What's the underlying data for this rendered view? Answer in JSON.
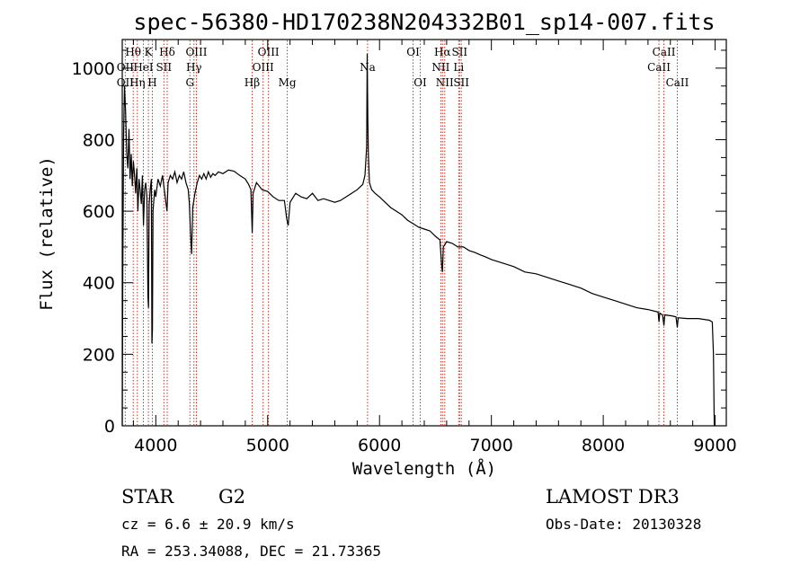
{
  "chart_data": {
    "type": "line",
    "title": "spec-56380-HD170238N204332B01_sp14-007.fits",
    "xlabel": "Wavelength (Å)",
    "ylabel": "Flux (relative)",
    "xlim": [
      3700,
      9100
    ],
    "ylim": [
      0,
      1080
    ],
    "x_ticks": [
      4000,
      5000,
      6000,
      7000,
      8000,
      9000
    ],
    "y_ticks": [
      0,
      200,
      400,
      600,
      800,
      1000
    ],
    "series": [
      {
        "name": "spectrum",
        "points": [
          [
            3700,
            0
          ],
          [
            3705,
            420
          ],
          [
            3712,
            810
          ],
          [
            3720,
            950
          ],
          [
            3730,
            880
          ],
          [
            3740,
            760
          ],
          [
            3750,
            720
          ],
          [
            3760,
            830
          ],
          [
            3770,
            690
          ],
          [
            3780,
            760
          ],
          [
            3790,
            670
          ],
          [
            3800,
            740
          ],
          [
            3810,
            700
          ],
          [
            3820,
            650
          ],
          [
            3830,
            720
          ],
          [
            3840,
            600
          ],
          [
            3850,
            690
          ],
          [
            3860,
            660
          ],
          [
            3870,
            620
          ],
          [
            3880,
            700
          ],
          [
            3890,
            560
          ],
          [
            3900,
            660
          ],
          [
            3910,
            680
          ],
          [
            3920,
            640
          ],
          [
            3930,
            360
          ],
          [
            3935,
            330
          ],
          [
            3940,
            620
          ],
          [
            3950,
            660
          ],
          [
            3960,
            690
          ],
          [
            3965,
            230
          ],
          [
            3970,
            270
          ],
          [
            3975,
            600
          ],
          [
            3990,
            660
          ],
          [
            4000,
            640
          ],
          [
            4020,
            690
          ],
          [
            4040,
            670
          ],
          [
            4060,
            700
          ],
          [
            4080,
            650
          ],
          [
            4100,
            600
          ],
          [
            4110,
            680
          ],
          [
            4130,
            700
          ],
          [
            4150,
            690
          ],
          [
            4170,
            710
          ],
          [
            4190,
            680
          ],
          [
            4210,
            700
          ],
          [
            4230,
            690
          ],
          [
            4250,
            710
          ],
          [
            4270,
            680
          ],
          [
            4290,
            660
          ],
          [
            4300,
            620
          ],
          [
            4310,
            540
          ],
          [
            4320,
            480
          ],
          [
            4330,
            610
          ],
          [
            4350,
            650
          ],
          [
            4370,
            680
          ],
          [
            4390,
            700
          ],
          [
            4410,
            690
          ],
          [
            4430,
            705
          ],
          [
            4450,
            690
          ],
          [
            4470,
            710
          ],
          [
            4490,
            695
          ],
          [
            4510,
            705
          ],
          [
            4530,
            700
          ],
          [
            4560,
            710
          ],
          [
            4600,
            705
          ],
          [
            4650,
            715
          ],
          [
            4700,
            712
          ],
          [
            4750,
            700
          ],
          [
            4800,
            690
          ],
          [
            4830,
            675
          ],
          [
            4850,
            660
          ],
          [
            4862,
            540
          ],
          [
            4870,
            650
          ],
          [
            4900,
            680
          ],
          [
            4950,
            660
          ],
          [
            5000,
            655
          ],
          [
            5050,
            640
          ],
          [
            5100,
            630
          ],
          [
            5150,
            630
          ],
          [
            5170,
            580
          ],
          [
            5183,
            560
          ],
          [
            5200,
            625
          ],
          [
            5250,
            650
          ],
          [
            5300,
            640
          ],
          [
            5350,
            635
          ],
          [
            5400,
            650
          ],
          [
            5450,
            630
          ],
          [
            5500,
            635
          ],
          [
            5550,
            630
          ],
          [
            5600,
            625
          ],
          [
            5650,
            630
          ],
          [
            5700,
            640
          ],
          [
            5750,
            650
          ],
          [
            5800,
            660
          ],
          [
            5850,
            675
          ],
          [
            5870,
            700
          ],
          [
            5885,
            780
          ],
          [
            5890,
            1040
          ],
          [
            5895,
            860
          ],
          [
            5900,
            760
          ],
          [
            5910,
            680
          ],
          [
            5930,
            660
          ],
          [
            5960,
            650
          ],
          [
            6000,
            640
          ],
          [
            6050,
            625
          ],
          [
            6100,
            610
          ],
          [
            6150,
            600
          ],
          [
            6200,
            590
          ],
          [
            6250,
            575
          ],
          [
            6300,
            565
          ],
          [
            6350,
            555
          ],
          [
            6400,
            550
          ],
          [
            6450,
            545
          ],
          [
            6500,
            530
          ],
          [
            6540,
            520
          ],
          [
            6555,
            450
          ],
          [
            6562,
            430
          ],
          [
            6570,
            500
          ],
          [
            6600,
            515
          ],
          [
            6650,
            510
          ],
          [
            6700,
            500
          ],
          [
            6750,
            500
          ],
          [
            6800,
            490
          ],
          [
            6850,
            485
          ],
          [
            6900,
            478
          ],
          [
            6950,
            472
          ],
          [
            7000,
            465
          ],
          [
            7100,
            455
          ],
          [
            7200,
            445
          ],
          [
            7300,
            430
          ],
          [
            7400,
            425
          ],
          [
            7500,
            415
          ],
          [
            7600,
            405
          ],
          [
            7700,
            395
          ],
          [
            7800,
            385
          ],
          [
            7900,
            370
          ],
          [
            8000,
            360
          ],
          [
            8100,
            350
          ],
          [
            8200,
            340
          ],
          [
            8300,
            330
          ],
          [
            8400,
            325
          ],
          [
            8490,
            318
          ],
          [
            8498,
            290
          ],
          [
            8505,
            315
          ],
          [
            8530,
            310
          ],
          [
            8542,
            280
          ],
          [
            8550,
            310
          ],
          [
            8600,
            308
          ],
          [
            8650,
            305
          ],
          [
            8662,
            275
          ],
          [
            8670,
            302
          ],
          [
            8750,
            300
          ],
          [
            8850,
            300
          ],
          [
            8950,
            295
          ],
          [
            8975,
            290
          ],
          [
            8985,
            200
          ],
          [
            8992,
            0
          ]
        ]
      }
    ],
    "annotations": [
      {
        "label": "Hθ",
        "wavelength": 3798,
        "row": 1
      },
      {
        "label": "OII",
        "wavelength": 3727,
        "row": 2
      },
      {
        "label": "OII",
        "wavelength": 3727,
        "row": 3
      },
      {
        "label": "HeI",
        "wavelength": 3889,
        "row": 2
      },
      {
        "label": "K",
        "wavelength": 3934,
        "row": 1
      },
      {
        "label": "Hη",
        "wavelength": 3835,
        "row": 3
      },
      {
        "label": "H",
        "wavelength": 3969,
        "row": 3
      },
      {
        "label": "Hδ",
        "wavelength": 4102,
        "row": 1
      },
      {
        "label": "SII",
        "wavelength": 4072,
        "row": 2
      },
      {
        "label": "OIII",
        "wavelength": 4363,
        "row": 1
      },
      {
        "label": "Hγ",
        "wavelength": 4341,
        "row": 2
      },
      {
        "label": "G",
        "wavelength": 4305,
        "row": 3
      },
      {
        "label": "Hβ",
        "wavelength": 4861,
        "row": 3
      },
      {
        "label": "OIII",
        "wavelength": 5007,
        "row": 1
      },
      {
        "label": "OIII",
        "wavelength": 4959,
        "row": 2
      },
      {
        "label": "Mg",
        "wavelength": 5175,
        "row": 3
      },
      {
        "label": "Na",
        "wavelength": 5893,
        "row": 2
      },
      {
        "label": "OI",
        "wavelength": 6300,
        "row": 1
      },
      {
        "label": "OI",
        "wavelength": 6364,
        "row": 3
      },
      {
        "label": "Hα",
        "wavelength": 6563,
        "row": 1
      },
      {
        "label": "SII",
        "wavelength": 6716,
        "row": 1
      },
      {
        "label": "NII",
        "wavelength": 6548,
        "row": 2
      },
      {
        "label": "Li",
        "wavelength": 6708,
        "row": 2
      },
      {
        "label": "NII",
        "wavelength": 6583,
        "row": 3
      },
      {
        "label": "SII",
        "wavelength": 6731,
        "row": 3
      },
      {
        "label": "CaII",
        "wavelength": 8542,
        "row": 1
      },
      {
        "label": "CaII",
        "wavelength": 8498,
        "row": 2
      },
      {
        "label": "CaII",
        "wavelength": 8662,
        "row": 3
      }
    ],
    "line_marker_wavelengths": [
      3727,
      3798,
      3835,
      3889,
      3934,
      3969,
      4072,
      4102,
      4305,
      4341,
      4363,
      4861,
      4959,
      5007,
      5175,
      5893,
      6300,
      6364,
      6548,
      6563,
      6583,
      6708,
      6716,
      6731,
      8498,
      8542,
      8662
    ]
  },
  "info": {
    "object_type": "STAR",
    "subclass": "G2",
    "redshift": "cz = 6.6 ± 20.9 km/s",
    "coords": "RA = 253.34088, DEC =  21.73365",
    "survey": "LAMOST DR3",
    "obs_date": "Obs-Date: 20130328"
  },
  "colors": {
    "marker_line": "#c0392b",
    "spectrum": "#000000",
    "axis": "#000000"
  }
}
